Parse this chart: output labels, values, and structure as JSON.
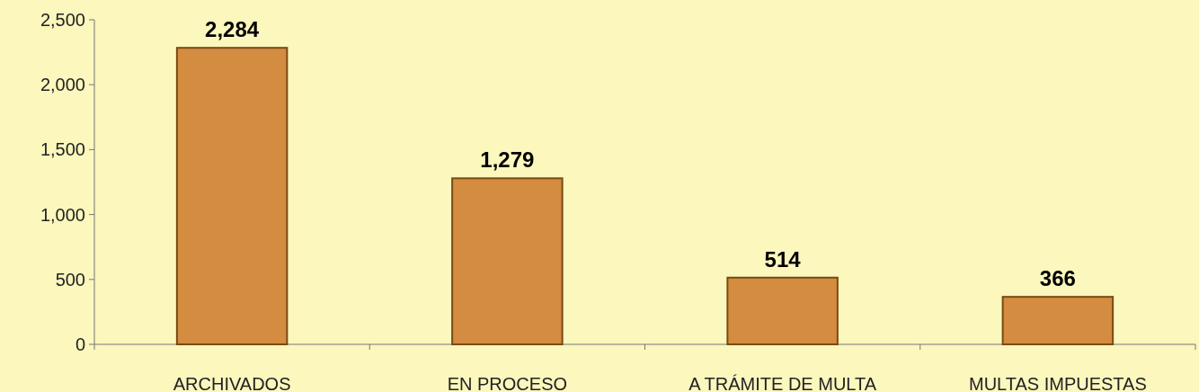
{
  "chart_data": {
    "type": "bar",
    "categories": [
      "ARCHIVADOS",
      "EN PROCESO",
      "A TRÁMITE DE MULTA",
      "MULTAS IMPUESTAS"
    ],
    "values": [
      2284,
      1279,
      514,
      366
    ],
    "color": "#d38c40",
    "ylim": [
      0,
      2500
    ],
    "yticks": [
      {
        "value": 0,
        "label": "0"
      },
      {
        "value": 500,
        "label": "500"
      },
      {
        "value": 1000,
        "label": "1,000"
      },
      {
        "value": 1500,
        "label": "1,500"
      },
      {
        "value": 2000,
        "label": "2,000"
      },
      {
        "value": 2500,
        "label": "2,500"
      }
    ],
    "value_labels": [
      "2,284",
      "1,279",
      "514",
      "366"
    ],
    "grid": false
  }
}
